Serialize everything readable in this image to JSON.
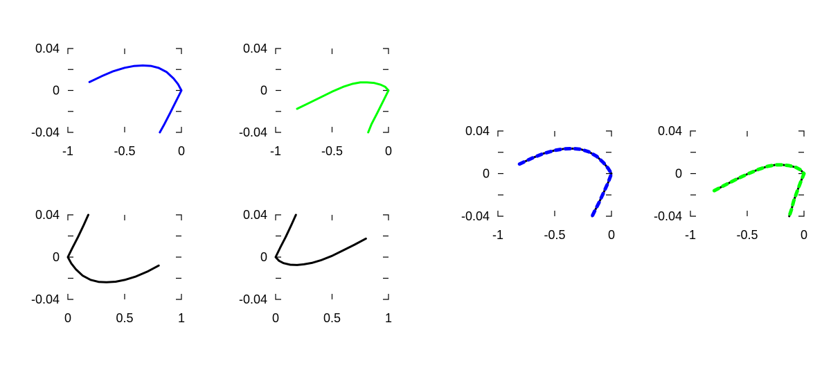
{
  "colors": {
    "blue": "#0000ff",
    "green": "#00ff00",
    "black": "#000000",
    "background": "#ffffff"
  },
  "chart_data": [
    {
      "id": "top-left",
      "type": "line",
      "grid": false,
      "xlim": [
        -1,
        0
      ],
      "ylim": [
        -0.04,
        0.04
      ],
      "x_ticks": [
        {
          "value": -1,
          "label": "-1"
        },
        {
          "value": -0.5,
          "label": "-0.5"
        },
        {
          "value": 0,
          "label": "0"
        }
      ],
      "y_ticks": [
        {
          "value": 0.04,
          "label": "0.04"
        },
        {
          "value": 0,
          "label": "0"
        },
        {
          "value": -0.04,
          "label": "-0.04"
        }
      ],
      "series": [
        {
          "color": "blue",
          "style": "solid",
          "points": [
            [
              -0.81,
              0.008
            ],
            [
              -0.7,
              0.0137
            ],
            [
              -0.6,
              0.0183
            ],
            [
              -0.5,
              0.0216
            ],
            [
              -0.42,
              0.0233
            ],
            [
              -0.34,
              0.0238
            ],
            [
              -0.27,
              0.0234
            ],
            [
              -0.2,
              0.0215
            ],
            [
              -0.13,
              0.0175
            ],
            [
              -0.07,
              0.0115
            ],
            [
              -0.03,
              0.006
            ],
            [
              0,
              0
            ],
            [
              -0.05,
              -0.0108
            ],
            [
              -0.1,
              -0.0216
            ],
            [
              -0.15,
              -0.0321
            ],
            [
              -0.19,
              -0.04
            ]
          ]
        }
      ]
    },
    {
      "id": "top-middle",
      "type": "line",
      "grid": false,
      "xlim": [
        -1,
        0
      ],
      "ylim": [
        -0.04,
        0.04
      ],
      "x_ticks": [
        {
          "value": -1,
          "label": "-1"
        },
        {
          "value": -0.5,
          "label": "-0.5"
        },
        {
          "value": 0,
          "label": "0"
        }
      ],
      "y_ticks": [
        {
          "value": 0.04,
          "label": "0.04"
        },
        {
          "value": 0,
          "label": "0"
        },
        {
          "value": -0.04,
          "label": "-0.04"
        }
      ],
      "series": [
        {
          "color": "green",
          "style": "solid",
          "points": [
            [
              -0.81,
              -0.0175
            ],
            [
              -0.7,
              -0.0118
            ],
            [
              -0.6,
              -0.0065
            ],
            [
              -0.5,
              -0.0012
            ],
            [
              -0.4,
              0.0035
            ],
            [
              -0.32,
              0.0063
            ],
            [
              -0.25,
              0.0077
            ],
            [
              -0.19,
              0.0077
            ],
            [
              -0.13,
              0.0072
            ],
            [
              -0.07,
              0.0055
            ],
            [
              -0.03,
              0.0035
            ],
            [
              0,
              0
            ],
            [
              -0.05,
              -0.0108
            ],
            [
              -0.1,
              -0.0216
            ],
            [
              -0.15,
              -0.0321
            ],
            [
              -0.18,
              -0.04
            ]
          ]
        }
      ]
    },
    {
      "id": "bottom-left",
      "type": "line",
      "grid": false,
      "xlim": [
        0,
        1
      ],
      "ylim": [
        -0.04,
        0.04
      ],
      "x_ticks": [
        {
          "value": 0,
          "label": "0"
        },
        {
          "value": 0.5,
          "label": "0.5"
        },
        {
          "value": 1,
          "label": "1"
        }
      ],
      "y_ticks": [
        {
          "value": 0.04,
          "label": "0.04"
        },
        {
          "value": 0,
          "label": "0"
        },
        {
          "value": -0.04,
          "label": "-0.04"
        }
      ],
      "series": [
        {
          "color": "black",
          "style": "solid",
          "points": [
            [
              0.18,
              0.04
            ],
            [
              0.14,
              0.0305
            ],
            [
              0.09,
              0.0192
            ],
            [
              0.04,
              0.0088
            ],
            [
              0,
              0
            ],
            [
              0.03,
              -0.006
            ],
            [
              0.07,
              -0.0115
            ],
            [
              0.13,
              -0.0175
            ],
            [
              0.2,
              -0.0215
            ],
            [
              0.27,
              -0.0234
            ],
            [
              0.34,
              -0.0238
            ],
            [
              0.42,
              -0.0233
            ],
            [
              0.5,
              -0.0216
            ],
            [
              0.6,
              -0.0183
            ],
            [
              0.7,
              -0.0137
            ],
            [
              0.8,
              -0.008
            ]
          ]
        }
      ]
    },
    {
      "id": "bottom-middle",
      "type": "line",
      "grid": false,
      "xlim": [
        0,
        1
      ],
      "ylim": [
        -0.04,
        0.04
      ],
      "x_ticks": [
        {
          "value": 0,
          "label": "0"
        },
        {
          "value": 0.5,
          "label": "0.5"
        },
        {
          "value": 1,
          "label": "1"
        }
      ],
      "y_ticks": [
        {
          "value": 0.04,
          "label": "0.04"
        },
        {
          "value": 0,
          "label": "0"
        },
        {
          "value": -0.04,
          "label": "-0.04"
        }
      ],
      "series": [
        {
          "color": "black",
          "style": "solid",
          "points": [
            [
              0.18,
              0.04
            ],
            [
              0.14,
              0.0305
            ],
            [
              0.09,
              0.0192
            ],
            [
              0.04,
              0.0088
            ],
            [
              0,
              0
            ],
            [
              0.03,
              -0.0035
            ],
            [
              0.07,
              -0.0057
            ],
            [
              0.13,
              -0.0072
            ],
            [
              0.19,
              -0.0075
            ],
            [
              0.25,
              -0.0068
            ],
            [
              0.32,
              -0.0055
            ],
            [
              0.4,
              -0.003
            ],
            [
              0.5,
              0.0012
            ],
            [
              0.6,
              0.0065
            ],
            [
              0.7,
              0.0118
            ],
            [
              0.8,
              0.0175
            ]
          ]
        }
      ]
    },
    {
      "id": "right-blue-overlay",
      "type": "line",
      "grid": false,
      "xlim": [
        -1,
        0
      ],
      "ylim": [
        -0.04,
        0.04
      ],
      "x_ticks": [
        {
          "value": -1,
          "label": "-1"
        },
        {
          "value": -0.5,
          "label": "-0.5"
        },
        {
          "value": 0,
          "label": "0"
        }
      ],
      "y_ticks": [
        {
          "value": 0.04,
          "label": "0.04"
        },
        {
          "value": 0,
          "label": "0"
        },
        {
          "value": -0.04,
          "label": "-0.04"
        }
      ],
      "series": [
        {
          "color": "black",
          "style": "solid",
          "points": [
            [
              -0.81,
              0.009
            ],
            [
              -0.7,
              0.0145
            ],
            [
              -0.6,
              0.0188
            ],
            [
              -0.5,
              0.0218
            ],
            [
              -0.42,
              0.0232
            ],
            [
              -0.34,
              0.0235
            ],
            [
              -0.27,
              0.0228
            ],
            [
              -0.2,
              0.0205
            ],
            [
              -0.13,
              0.0162
            ],
            [
              -0.07,
              0.0102
            ],
            [
              -0.03,
              0.005
            ],
            [
              0,
              0
            ],
            [
              -0.03,
              -0.0085
            ],
            [
              -0.07,
              -0.018
            ],
            [
              -0.11,
              -0.0272
            ],
            [
              -0.15,
              -0.0356
            ],
            [
              -0.17,
              -0.04
            ]
          ]
        },
        {
          "color": "blue",
          "style": "dashed",
          "points": [
            [
              -0.81,
              0.009
            ],
            [
              -0.7,
              0.0145
            ],
            [
              -0.6,
              0.0188
            ],
            [
              -0.5,
              0.0218
            ],
            [
              -0.42,
              0.0232
            ],
            [
              -0.34,
              0.0235
            ],
            [
              -0.27,
              0.0228
            ],
            [
              -0.2,
              0.0205
            ],
            [
              -0.13,
              0.0162
            ],
            [
              -0.07,
              0.0102
            ],
            [
              -0.03,
              0.005
            ],
            [
              0,
              0
            ],
            [
              -0.03,
              -0.0085
            ],
            [
              -0.07,
              -0.018
            ],
            [
              -0.11,
              -0.0272
            ],
            [
              -0.15,
              -0.0356
            ],
            [
              -0.17,
              -0.04
            ]
          ]
        }
      ]
    },
    {
      "id": "right-green-overlay",
      "type": "line",
      "grid": false,
      "xlim": [
        -1,
        0
      ],
      "ylim": [
        -0.04,
        0.04
      ],
      "x_ticks": [
        {
          "value": -1,
          "label": "-1"
        },
        {
          "value": -0.5,
          "label": "-0.5"
        },
        {
          "value": 0,
          "label": "0"
        }
      ],
      "y_ticks": [
        {
          "value": 0.04,
          "label": "0.04"
        },
        {
          "value": 0,
          "label": "0"
        },
        {
          "value": -0.04,
          "label": "-0.04"
        }
      ],
      "series": [
        {
          "color": "black",
          "style": "solid",
          "points": [
            [
              -0.79,
              -0.016
            ],
            [
              -0.7,
              -0.011
            ],
            [
              -0.6,
              -0.0055
            ],
            [
              -0.5,
              -0.0005
            ],
            [
              -0.4,
              0.004
            ],
            [
              -0.32,
              0.0068
            ],
            [
              -0.25,
              0.0082
            ],
            [
              -0.19,
              0.0082
            ],
            [
              -0.13,
              0.0075
            ],
            [
              -0.07,
              0.0058
            ],
            [
              -0.03,
              0.0035
            ],
            [
              0,
              0
            ],
            [
              -0.03,
              -0.008
            ],
            [
              -0.06,
              -0.0165
            ],
            [
              -0.09,
              -0.0255
            ],
            [
              -0.11,
              -0.0335
            ],
            [
              -0.13,
              -0.04
            ]
          ]
        },
        {
          "color": "green",
          "style": "dashed",
          "points": [
            [
              -0.79,
              -0.016
            ],
            [
              -0.7,
              -0.011
            ],
            [
              -0.6,
              -0.0055
            ],
            [
              -0.5,
              -0.0005
            ],
            [
              -0.4,
              0.004
            ],
            [
              -0.32,
              0.0068
            ],
            [
              -0.25,
              0.0082
            ],
            [
              -0.19,
              0.0082
            ],
            [
              -0.13,
              0.0075
            ],
            [
              -0.07,
              0.0058
            ],
            [
              -0.03,
              0.0035
            ],
            [
              0,
              0
            ],
            [
              -0.03,
              -0.008
            ],
            [
              -0.06,
              -0.0165
            ],
            [
              -0.09,
              -0.0255
            ],
            [
              -0.11,
              -0.0335
            ],
            [
              -0.13,
              -0.04
            ]
          ]
        }
      ]
    }
  ]
}
